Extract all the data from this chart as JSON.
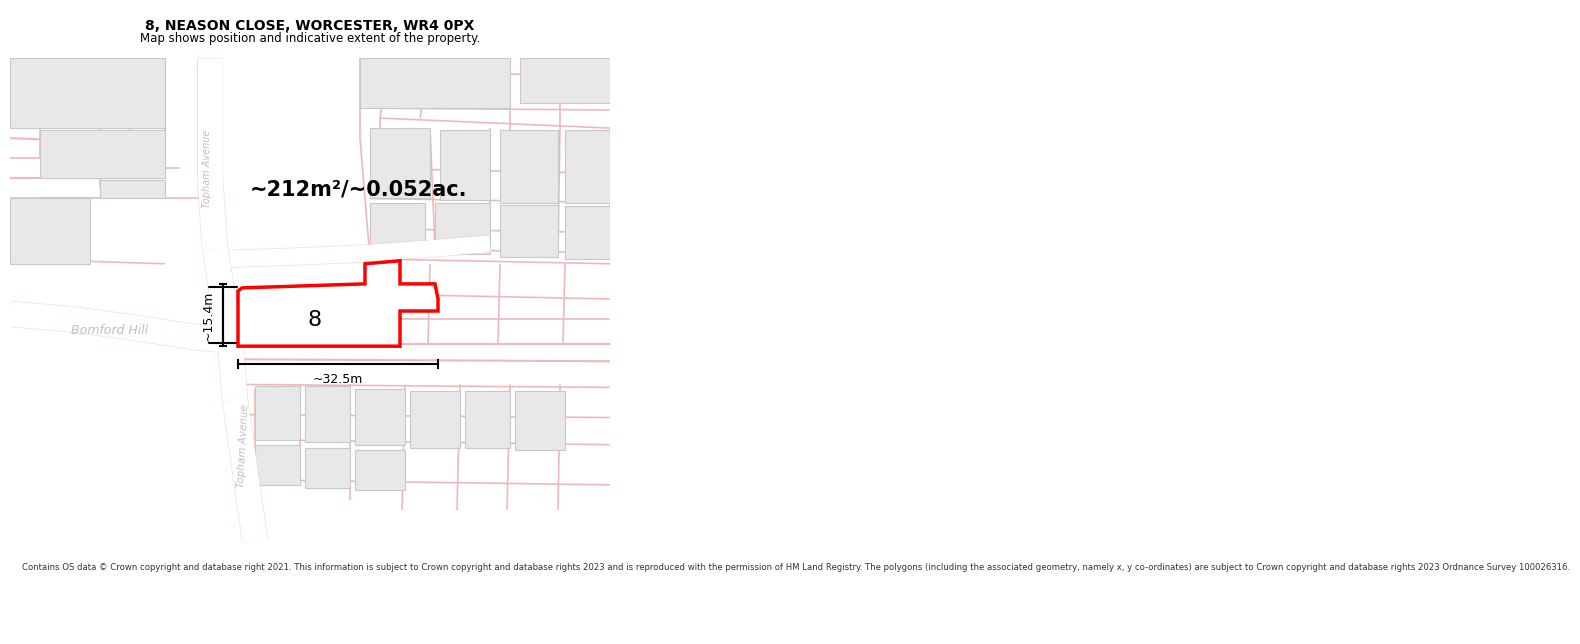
{
  "title": "8, NEASON CLOSE, WORCESTER, WR4 0PX",
  "subtitle": "Map shows position and indicative extent of the property.",
  "footer": "Contains OS data © Crown copyright and database right 2021. This information is subject to Crown copyright and database rights 2023 and is reproduced with the permission of HM Land Registry. The polygons (including the associated geometry, namely x, y co-ordinates) are subject to Crown copyright and database rights 2023 Ordnance Survey 100026316.",
  "area_label": "~212m²/~0.052ac.",
  "width_label": "~32.5m",
  "height_label": "~15.4m",
  "number_label": "8",
  "map_bg": "#ffffff",
  "road_color": "#f2b8b8",
  "building_color": "#e8e8e8",
  "building_edge": "#c8c8c8",
  "highlight_color": "#ff0000",
  "highlight_fill": "#ffffff",
  "street_label_color": "#c0c0c0",
  "title_color": "#000000",
  "footer_color": "#333333"
}
